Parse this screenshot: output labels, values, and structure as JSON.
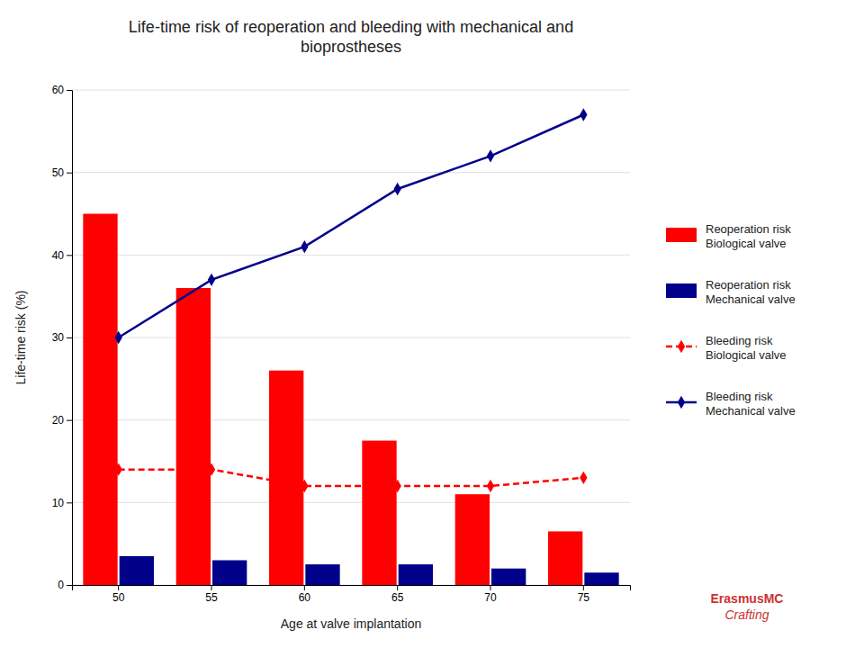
{
  "chart_data": {
    "type": "bar",
    "title": "Life-time risk of reoperation and bleeding with mechanical and\nbioprostheses",
    "xlabel": "Age at valve implantation",
    "ylabel": "Life-time risk (%)",
    "categories": [
      "50",
      "55",
      "60",
      "65",
      "70",
      "75"
    ],
    "series": [
      {
        "name": "Reoperation risk\nBiological valve",
        "type": "bar",
        "color": "#FF0000",
        "values": [
          45,
          36,
          26,
          17.5,
          11,
          6.5
        ]
      },
      {
        "name": "Reoperation risk\nMechanical valve",
        "type": "bar",
        "color": "#00008B",
        "values": [
          3.5,
          3.0,
          2.5,
          2.5,
          2.0,
          1.5
        ]
      },
      {
        "name": "Bleeding risk\nBiological valve",
        "type": "line",
        "color": "#FF0000",
        "line_style": "dashed",
        "marker": "diamond",
        "values": [
          14,
          14,
          12,
          12,
          12,
          13
        ]
      },
      {
        "name": "Bleeding risk\nMechanical valve",
        "type": "line",
        "color": "#00008B",
        "line_style": "solid",
        "marker": "diamond",
        "values": [
          30,
          37,
          41,
          48,
          52,
          57
        ]
      }
    ],
    "ylim": [
      0,
      60
    ],
    "yticks": [
      0,
      10,
      20,
      30,
      40,
      50,
      60
    ],
    "grid": true,
    "legend": "right",
    "annotations": [
      "ErasmusMC",
      "Crafting"
    ]
  }
}
